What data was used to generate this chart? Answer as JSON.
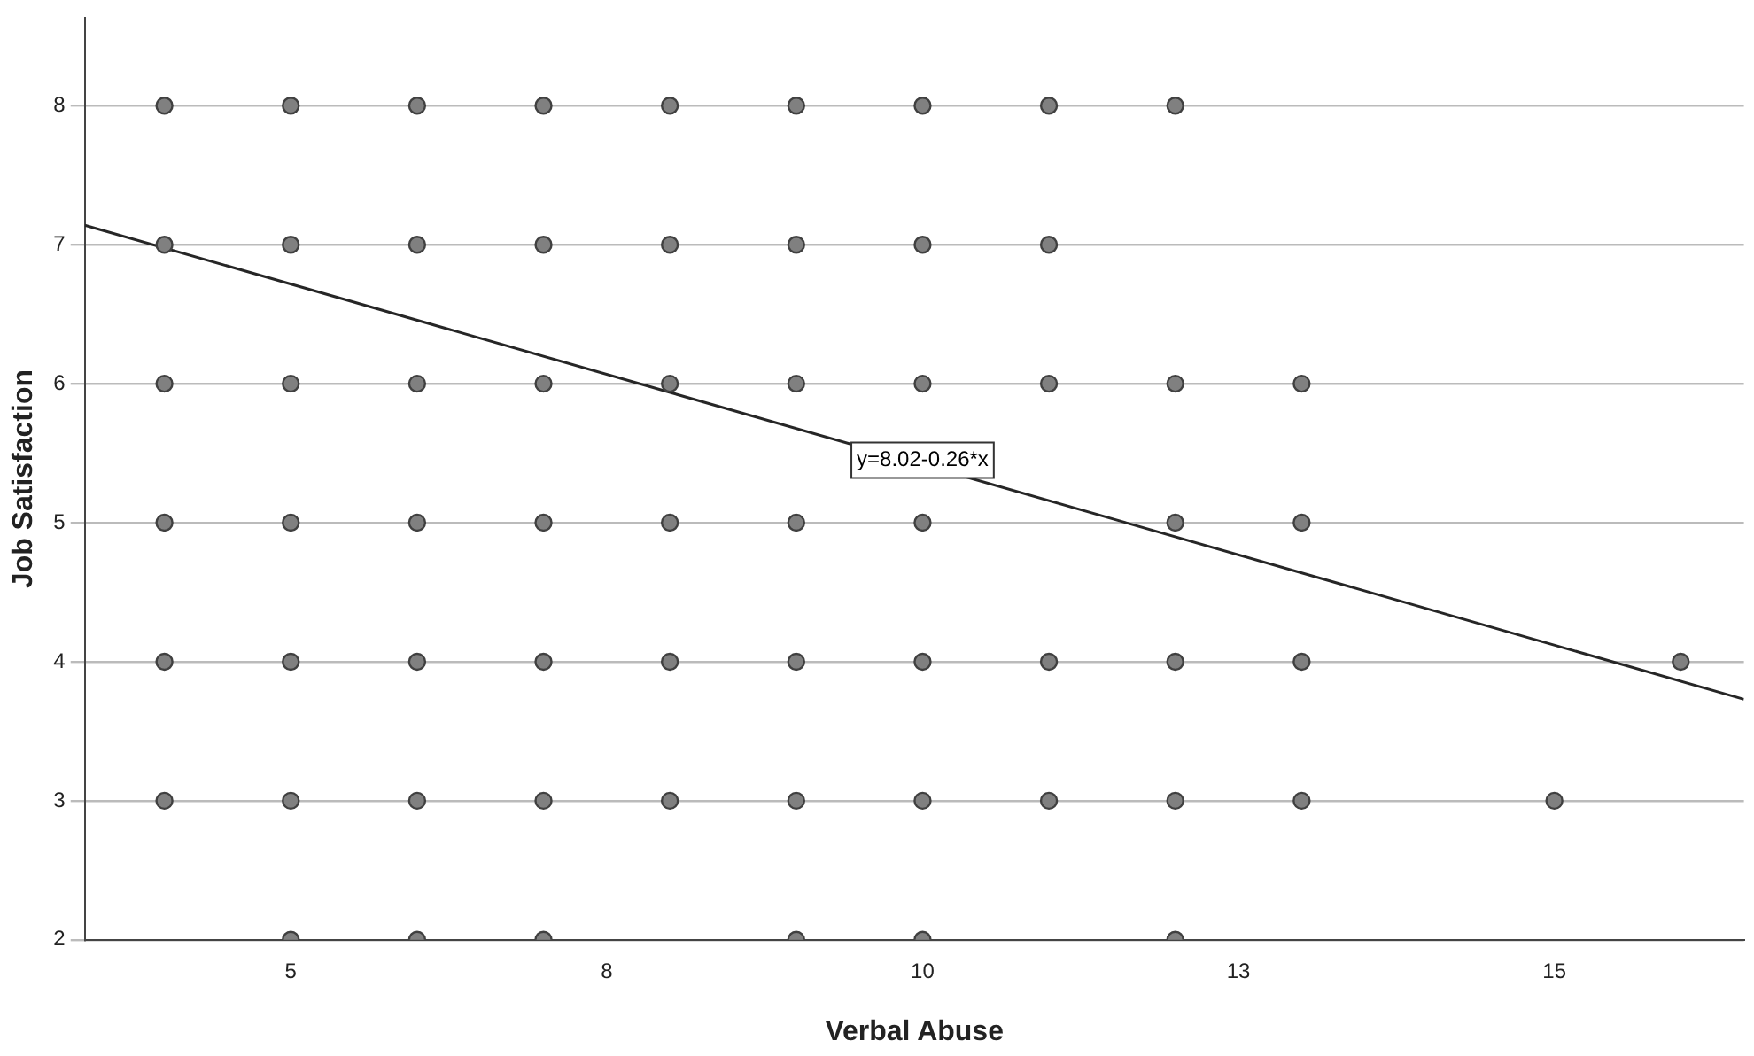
{
  "chart_data": {
    "type": "scatter",
    "xlabel": "Verbal Abuse",
    "ylabel": "Job Satisfaction",
    "xlim": [
      3.37,
      16.5
    ],
    "ylim": [
      2,
      8.63
    ],
    "xticks": [
      5,
      {
        "value": 7.5,
        "label": "8"
      },
      10,
      {
        "value": 12.5,
        "label": "13"
      },
      15
    ],
    "yticks": [
      2,
      3,
      4,
      5,
      6,
      7,
      8
    ],
    "grid": "y",
    "legend": false,
    "marker": "circle",
    "annotations": [
      {
        "text": "y=8.02-0.26*x",
        "x": 10,
        "y": 5.45
      }
    ],
    "series": [
      {
        "type": "scatter",
        "color": "#808080",
        "x": [
          4,
          5,
          6,
          7,
          8,
          9,
          10,
          11,
          12,
          4,
          5,
          6,
          7,
          8,
          9,
          10,
          11,
          4,
          5,
          6,
          7,
          8,
          9,
          10,
          11,
          12,
          13,
          4,
          5,
          6,
          7,
          8,
          9,
          10,
          12,
          13,
          4,
          5,
          6,
          7,
          8,
          9,
          10,
          11,
          12,
          13,
          16,
          4,
          5,
          6,
          7,
          8,
          9,
          10,
          11,
          12,
          13,
          15,
          5,
          6,
          7,
          9,
          10,
          12
        ],
        "values": [
          8,
          8,
          8,
          8,
          8,
          8,
          8,
          8,
          8,
          7,
          7,
          7,
          7,
          7,
          7,
          7,
          7,
          6,
          6,
          6,
          6,
          6,
          6,
          6,
          6,
          6,
          6,
          5,
          5,
          5,
          5,
          5,
          5,
          5,
          5,
          5,
          4,
          4,
          4,
          4,
          4,
          4,
          4,
          4,
          4,
          4,
          4,
          3,
          3,
          3,
          3,
          3,
          3,
          3,
          3,
          3,
          3,
          3,
          2,
          2,
          2,
          2,
          2,
          2
        ]
      },
      {
        "type": "line",
        "color": "#262626",
        "x": [
          3.37,
          16.5
        ],
        "values": [
          7.14,
          3.73
        ],
        "marker": "none"
      }
    ]
  }
}
